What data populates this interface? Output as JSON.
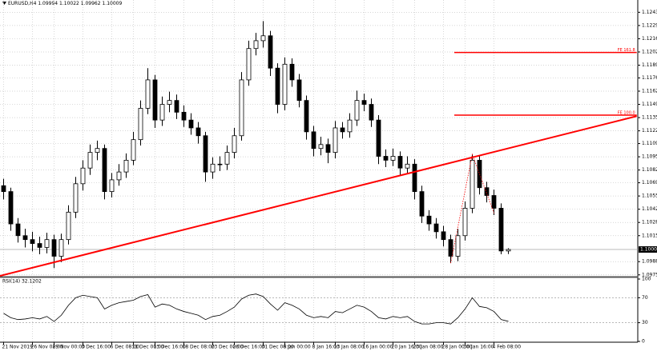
{
  "chart_data": {
    "type": "candlestick",
    "title": "EURUSD,H4  1.09994 1.10022 1.09962 1.10009",
    "open": [
      1.1066,
      1.106,
      1.1027,
      1.1015,
      1.1011,
      1.1007,
      1.1003,
      1.1011,
      1.0994,
      1.1011,
      1.1039,
      1.1068,
      1.1084,
      1.11,
      1.1104,
      1.106,
      1.1072,
      1.108,
      1.1092,
      1.1113,
      1.1145,
      1.1174,
      1.1133,
      1.1149,
      1.1153,
      1.1141,
      1.1133,
      1.1125,
      1.1117,
      1.108,
      1.1088,
      1.1088,
      1.11,
      1.1117,
      1.1174,
      1.1206,
      1.1214,
      1.1219,
      1.1186,
      1.1149,
      1.119,
      1.1174,
      1.1153,
      1.1121,
      1.1104,
      1.1108,
      1.11,
      1.1125,
      1.1121,
      1.1133,
      1.1153,
      1.1149,
      1.1133,
      1.1096,
      1.1092,
      1.1096,
      1.1084,
      1.1088,
      1.106,
      1.1035,
      1.1027,
      1.1019,
      1.1011,
      1.0994,
      1.1015,
      1.1043,
      1.1092,
      1.1064,
      1.1056,
      1.1043,
      1.09994
    ],
    "high": [
      1.1073,
      1.1064,
      1.1033,
      1.1022,
      1.1019,
      1.1014,
      1.1018,
      1.1016,
      1.1017,
      1.1046,
      1.1075,
      1.1092,
      1.1108,
      1.1112,
      1.1108,
      1.1079,
      1.1088,
      1.1099,
      1.1121,
      1.1153,
      1.1186,
      1.1179,
      1.1157,
      1.1162,
      1.1159,
      1.1148,
      1.114,
      1.1131,
      1.1121,
      1.1095,
      1.1096,
      1.1107,
      1.1125,
      1.1182,
      1.1214,
      1.1222,
      1.1234,
      1.1224,
      1.1191,
      1.1197,
      1.1196,
      1.118,
      1.1158,
      1.1127,
      1.1116,
      1.1114,
      1.1132,
      1.1131,
      1.114,
      1.1163,
      1.116,
      1.1155,
      1.1138,
      1.1103,
      1.1104,
      1.1101,
      1.1096,
      1.1093,
      1.1066,
      1.1041,
      1.1033,
      1.1025,
      1.1016,
      1.1022,
      1.105,
      1.1098,
      1.1096,
      1.107,
      1.1062,
      1.1048,
      1.10022
    ],
    "low": [
      1.1052,
      1.102,
      1.1008,
      1.1003,
      1.0999,
      1.0996,
      1.0997,
      1.0982,
      1.0988,
      1.1006,
      1.1033,
      1.1061,
      1.1077,
      1.1092,
      1.1052,
      1.1054,
      1.1066,
      1.1074,
      1.1087,
      1.1107,
      1.1139,
      1.1125,
      1.1127,
      1.1141,
      1.1134,
      1.1126,
      1.1118,
      1.1109,
      1.107,
      1.1073,
      1.1081,
      1.1082,
      1.1094,
      1.1112,
      1.1168,
      1.1199,
      1.1207,
      1.1178,
      1.114,
      1.1143,
      1.1167,
      1.1146,
      1.1113,
      1.1096,
      1.1097,
      1.1089,
      1.1094,
      1.1114,
      1.1115,
      1.1127,
      1.1142,
      1.1126,
      1.1088,
      1.1085,
      1.1086,
      1.1077,
      1.1078,
      1.1052,
      1.1028,
      1.102,
      1.1012,
      1.1004,
      1.0987,
      1.0989,
      1.101,
      1.1038,
      1.1057,
      1.1049,
      1.1036,
      1.0996,
      1.09962
    ],
    "close": [
      1.106,
      1.1027,
      1.1015,
      1.1011,
      1.1007,
      1.1003,
      1.1011,
      1.0994,
      1.1011,
      1.1039,
      1.1068,
      1.1084,
      1.11,
      1.1104,
      1.106,
      1.1072,
      1.108,
      1.1092,
      1.1113,
      1.1145,
      1.1174,
      1.1133,
      1.1149,
      1.1153,
      1.1141,
      1.1133,
      1.1125,
      1.1117,
      1.108,
      1.1088,
      1.1088,
      1.11,
      1.1117,
      1.1174,
      1.1206,
      1.1214,
      1.1219,
      1.1186,
      1.1149,
      1.119,
      1.1174,
      1.1153,
      1.1121,
      1.1104,
      1.1108,
      1.11,
      1.1125,
      1.1121,
      1.1133,
      1.1153,
      1.1149,
      1.1133,
      1.1096,
      1.1092,
      1.1096,
      1.1084,
      1.1088,
      1.106,
      1.1035,
      1.1027,
      1.1019,
      1.1011,
      1.0994,
      1.1015,
      1.1043,
      1.1092,
      1.1064,
      1.1056,
      1.1043,
      1.09994,
      1.10009
    ],
    "color": "#000000",
    "ylim": [
      1.0974,
      1.1249
    ],
    "yticks": [
      {
        "value": 1.1243,
        "label": "1.12430"
      },
      {
        "value": 1.12295,
        "label": "1.12295"
      },
      {
        "value": 1.1216,
        "label": "1.12160"
      },
      {
        "value": 1.12025,
        "label": "1.12025"
      },
      {
        "value": 1.1189,
        "label": "1.11890"
      },
      {
        "value": 1.1176,
        "label": "1.11760"
      },
      {
        "value": 1.11625,
        "label": "1.11625"
      },
      {
        "value": 1.1149,
        "label": "1.11490"
      },
      {
        "value": 1.11355,
        "label": "1.11355"
      },
      {
        "value": 1.1122,
        "label": "1.11220"
      },
      {
        "value": 1.1109,
        "label": "1.11090"
      },
      {
        "value": 1.10955,
        "label": "1.10955"
      },
      {
        "value": 1.1082,
        "label": "1.10820"
      },
      {
        "value": 1.1069,
        "label": "1.10690"
      },
      {
        "value": 1.10555,
        "label": "1.10555"
      },
      {
        "value": 1.1042,
        "label": "1.10420"
      },
      {
        "value": 1.10285,
        "label": "1.10285"
      },
      {
        "value": 1.1015,
        "label": "1.10150"
      },
      {
        "value": 1.09885,
        "label": "1.09885"
      },
      {
        "value": 1.0975,
        "label": "1.09750"
      }
    ],
    "current_price": 1.10009,
    "xticks": [
      {
        "value": 0,
        "label": "21 Nov 2019"
      },
      {
        "value": 4,
        "label": "26 Nov 08:00"
      },
      {
        "value": 7,
        "label": "29 Nov 00:00"
      },
      {
        "value": 11,
        "label": "3 Dec 16:00"
      },
      {
        "value": 15,
        "label": "6 Dec 08:00"
      },
      {
        "value": 18,
        "label": "11 Dec 00:00"
      },
      {
        "value": 21,
        "label": "13 Dec 16:00"
      },
      {
        "value": 25,
        "label": "18 Dec 08:00"
      },
      {
        "value": 29,
        "label": "23 Dec 00:00"
      },
      {
        "value": 32,
        "label": "26 Dec 16:00"
      },
      {
        "value": 36,
        "label": "31 Dec 08:00"
      },
      {
        "value": 39,
        "label": "6 Jan 00:00"
      },
      {
        "value": 43,
        "label": "8 Jan 16:00"
      },
      {
        "value": 46,
        "label": "13 Jan 08:00"
      },
      {
        "value": 50,
        "label": "16 Jan 00:00"
      },
      {
        "value": 54,
        "label": "20 Jan 16:00"
      },
      {
        "value": 57,
        "label": "23 Jan 08:00"
      },
      {
        "value": 61,
        "label": "28 Jan 00:00"
      },
      {
        "value": 64,
        "label": "30 Jan 16:00"
      },
      {
        "value": 68,
        "label": "4 Feb 08:00"
      }
    ],
    "grid": true,
    "trendline": {
      "x": [
        -0.5,
        87.8
      ],
      "y": [
        1.0974,
        1.1137
      ],
      "color": "#ff0000"
    },
    "fe_levels": [
      {
        "label": "FE 161.8",
        "value": 1.1202,
        "x": [
          62.5,
          87.8
        ]
      },
      {
        "label": "FE 100.0",
        "value": 1.1138,
        "x": [
          62.5,
          87.8
        ]
      }
    ],
    "fe_path": {
      "x": [
        62,
        65,
        68
      ],
      "y": [
        1.0987,
        1.1098,
        1.1038
      ]
    },
    "rsi": {
      "title": "RSI(14) 32.1202",
      "values": [
        45,
        38,
        35,
        36,
        38,
        36,
        40,
        32,
        42,
        58,
        70,
        74,
        72,
        70,
        52,
        58,
        62,
        64,
        66,
        72,
        75,
        55,
        60,
        58,
        52,
        48,
        45,
        42,
        35,
        40,
        42,
        48,
        55,
        68,
        74,
        76,
        72,
        60,
        50,
        62,
        58,
        52,
        42,
        38,
        40,
        38,
        48,
        46,
        52,
        58,
        55,
        48,
        38,
        36,
        40,
        38,
        40,
        32,
        28,
        28,
        30,
        30,
        28,
        38,
        52,
        70,
        56,
        54,
        48,
        35,
        32.1202
      ],
      "ylim": [
        0,
        100
      ],
      "yticks": [
        100,
        70,
        30,
        0
      ],
      "levels": [
        70,
        30
      ],
      "color": "#000000"
    }
  }
}
